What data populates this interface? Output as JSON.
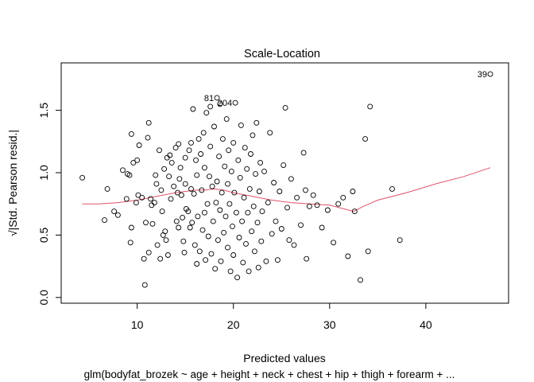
{
  "chart_data": {
    "type": "scatter",
    "title": "Scale-Location",
    "xlabel": "Predicted values",
    "ylabel": "√|Std. Pearson resid.|",
    "subtitle": "glm(bodyfat_brozek ~ age + height + neck + chest + hip + thigh + forearm +  ...",
    "xlim": [
      2.1,
      48.6
    ],
    "ylim": [
      -0.046,
      1.88
    ],
    "x_ticks": [
      10,
      20,
      30,
      40
    ],
    "y_ticks": [
      0.0,
      0.5,
      1.0,
      1.5
    ],
    "y_tick_labels": [
      "0.0",
      "0.5",
      "1.0",
      "1.5"
    ],
    "grid": false,
    "point_style": "open-circle",
    "smoother_color": "#DF536B",
    "points": [
      [
        4.3,
        0.96
      ],
      [
        6.6,
        0.62
      ],
      [
        6.9,
        0.87
      ],
      [
        7.6,
        0.69
      ],
      [
        8.0,
        0.66
      ],
      [
        8.5,
        1.02
      ],
      [
        8.9,
        0.79
      ],
      [
        9.0,
        0.99
      ],
      [
        9.2,
        0.98
      ],
      [
        9.3,
        0.44
      ],
      [
        9.4,
        0.56
      ],
      [
        9.4,
        1.31
      ],
      [
        9.6,
        1.08
      ],
      [
        9.9,
        0.76
      ],
      [
        10.0,
        1.1
      ],
      [
        10.1,
        0.82
      ],
      [
        10.2,
        1.22
      ],
      [
        10.5,
        0.8
      ],
      [
        10.7,
        0.31
      ],
      [
        10.8,
        0.1
      ],
      [
        10.9,
        0.6
      ],
      [
        11.1,
        1.28
      ],
      [
        11.2,
        0.36
      ],
      [
        11.2,
        1.4
      ],
      [
        11.4,
        0.79
      ],
      [
        11.5,
        0.74
      ],
      [
        11.6,
        0.59
      ],
      [
        11.8,
        0.76
      ],
      [
        11.9,
        0.98
      ],
      [
        12.0,
        0.91
      ],
      [
        12.1,
        0.42
      ],
      [
        12.3,
        1.18
      ],
      [
        12.4,
        0.31
      ],
      [
        12.5,
        0.86
      ],
      [
        12.6,
        0.69
      ],
      [
        12.7,
        0.5
      ],
      [
        12.8,
        1.03
      ],
      [
        12.9,
        0.53
      ],
      [
        13.0,
        0.46
      ],
      [
        13.1,
        1.12
      ],
      [
        13.2,
        0.34
      ],
      [
        13.3,
        0.97
      ],
      [
        13.4,
        1.14
      ],
      [
        13.5,
        0.79
      ],
      [
        13.6,
        1.08
      ],
      [
        13.8,
        0.89
      ],
      [
        14.0,
        1.2
      ],
      [
        14.1,
        0.61
      ],
      [
        14.2,
        0.84
      ],
      [
        14.3,
        0.56
      ],
      [
        14.3,
        1.23
      ],
      [
        14.4,
        0.95
      ],
      [
        14.5,
        1.04
      ],
      [
        14.6,
        0.82
      ],
      [
        14.7,
        0.64
      ],
      [
        14.8,
        0.45
      ],
      [
        14.9,
        0.36
      ],
      [
        15.0,
        1.12
      ],
      [
        15.0,
        0.91
      ],
      [
        15.1,
        0.71
      ],
      [
        15.3,
        0.69
      ],
      [
        15.4,
        1.18
      ],
      [
        15.5,
        0.56
      ],
      [
        15.6,
        0.87
      ],
      [
        15.6,
        1.24
      ],
      [
        15.7,
        0.6
      ],
      [
        15.8,
        1.51
      ],
      [
        15.9,
        0.83
      ],
      [
        16.0,
        0.42
      ],
      [
        16.1,
        1.1
      ],
      [
        16.2,
        0.27
      ],
      [
        16.2,
        0.98
      ],
      [
        16.3,
        0.65
      ],
      [
        16.4,
        1.27
      ],
      [
        16.5,
        0.37
      ],
      [
        16.6,
        1.15
      ],
      [
        16.7,
        0.86
      ],
      [
        16.8,
        0.54
      ],
      [
        16.9,
        1.32
      ],
      [
        17.0,
        0.68
      ],
      [
        17.0,
        1.04
      ],
      [
        17.1,
        0.3
      ],
      [
        17.2,
        1.48
      ],
      [
        17.3,
        0.75
      ],
      [
        17.4,
        0.49
      ],
      [
        17.5,
        0.97
      ],
      [
        17.6,
        1.21
      ],
      [
        17.6,
        1.53
      ],
      [
        17.7,
        0.35
      ],
      [
        17.8,
        0.89
      ],
      [
        17.9,
        0.61
      ],
      [
        18.0,
        1.37
      ],
      [
        18.1,
        0.23
      ],
      [
        18.2,
        0.76
      ],
      [
        18.3,
        0.93
      ],
      [
        18.3,
        1.6
      ],
      [
        18.4,
        0.46
      ],
      [
        18.5,
        1.13
      ],
      [
        18.6,
        1.55
      ],
      [
        18.6,
        0.7
      ],
      [
        18.7,
        0.29
      ],
      [
        18.8,
        0.84
      ],
      [
        18.9,
        1.27
      ],
      [
        19.0,
        0.52
      ],
      [
        19.1,
        1.05
      ],
      [
        19.2,
        0.65
      ],
      [
        19.3,
        1.43
      ],
      [
        19.4,
        0.4
      ],
      [
        19.4,
        0.91
      ],
      [
        19.5,
        1.18
      ],
      [
        19.6,
        0.75
      ],
      [
        19.7,
        0.21
      ],
      [
        19.8,
        1.01
      ],
      [
        19.9,
        0.57
      ],
      [
        20.0,
        1.24
      ],
      [
        20.0,
        0.34
      ],
      [
        20.1,
        0.84
      ],
      [
        20.2,
        1.56
      ],
      [
        20.3,
        0.68
      ],
      [
        20.4,
        0.16
      ],
      [
        20.5,
        1.1
      ],
      [
        20.6,
        0.48
      ],
      [
        20.7,
        0.96
      ],
      [
        20.8,
        1.38
      ],
      [
        20.9,
        0.61
      ],
      [
        21.0,
        0.28
      ],
      [
        21.1,
        0.8
      ],
      [
        21.2,
        1.2
      ],
      [
        21.3,
        0.43
      ],
      [
        21.4,
        1.03
      ],
      [
        21.5,
        0.68
      ],
      [
        21.6,
        0.21
      ],
      [
        21.7,
        0.87
      ],
      [
        21.8,
        1.15
      ],
      [
        21.9,
        0.53
      ],
      [
        22.0,
        1.3
      ],
      [
        22.1,
        0.73
      ],
      [
        22.2,
        0.37
      ],
      [
        22.3,
        0.99
      ],
      [
        22.4,
        1.4
      ],
      [
        22.5,
        0.6
      ],
      [
        22.6,
        0.24
      ],
      [
        22.7,
        0.85
      ],
      [
        22.8,
        1.08
      ],
      [
        22.9,
        0.45
      ],
      [
        23.0,
        0.69
      ],
      [
        23.2,
        1.01
      ],
      [
        23.4,
        0.29
      ],
      [
        23.6,
        0.76
      ],
      [
        23.8,
        1.32
      ],
      [
        24.0,
        0.51
      ],
      [
        24.2,
        0.92
      ],
      [
        24.4,
        0.61
      ],
      [
        24.6,
        0.3
      ],
      [
        24.8,
        0.85
      ],
      [
        25.0,
        0.55
      ],
      [
        25.2,
        1.06
      ],
      [
        25.4,
        1.52
      ],
      [
        25.6,
        0.72
      ],
      [
        25.8,
        0.46
      ],
      [
        26.0,
        0.95
      ],
      [
        26.3,
        0.42
      ],
      [
        26.6,
        0.8
      ],
      [
        27.0,
        0.58
      ],
      [
        27.3,
        1.16
      ],
      [
        27.5,
        0.86
      ],
      [
        27.6,
        0.31
      ],
      [
        27.9,
        0.73
      ],
      [
        28.3,
        0.82
      ],
      [
        28.7,
        0.74
      ],
      [
        29.2,
        0.56
      ],
      [
        29.8,
        0.7
      ],
      [
        30.4,
        0.44
      ],
      [
        30.9,
        0.75
      ],
      [
        31.4,
        0.8
      ],
      [
        31.9,
        0.33
      ],
      [
        32.4,
        0.85
      ],
      [
        32.6,
        0.69
      ],
      [
        33.2,
        0.14
      ],
      [
        33.7,
        1.27
      ],
      [
        34.0,
        0.37
      ],
      [
        34.2,
        1.53
      ],
      [
        36.5,
        0.87
      ],
      [
        37.3,
        0.46
      ],
      [
        46.7,
        1.79
      ]
    ],
    "smoother": [
      [
        4.3,
        0.75
      ],
      [
        6.0,
        0.75
      ],
      [
        8.0,
        0.76
      ],
      [
        10.0,
        0.78
      ],
      [
        12.0,
        0.81
      ],
      [
        14.0,
        0.84
      ],
      [
        16.0,
        0.86
      ],
      [
        17.0,
        0.86
      ],
      [
        18.0,
        0.87
      ],
      [
        19.0,
        0.86
      ],
      [
        20.0,
        0.84
      ],
      [
        22.0,
        0.81
      ],
      [
        24.0,
        0.78
      ],
      [
        26.0,
        0.76
      ],
      [
        28.0,
        0.75
      ],
      [
        30.0,
        0.74
      ],
      [
        31.5,
        0.71
      ],
      [
        32.5,
        0.69
      ],
      [
        33.5,
        0.73
      ],
      [
        35.0,
        0.78
      ],
      [
        38.0,
        0.84
      ],
      [
        41.0,
        0.91
      ],
      [
        44.0,
        0.97
      ],
      [
        46.7,
        1.04
      ]
    ],
    "point_labels": [
      {
        "text": "81",
        "x": 18.3,
        "y": 1.6
      },
      {
        "text": "204",
        "x": 20.2,
        "y": 1.56
      },
      {
        "text": "39",
        "x": 46.7,
        "y": 1.79
      }
    ]
  }
}
